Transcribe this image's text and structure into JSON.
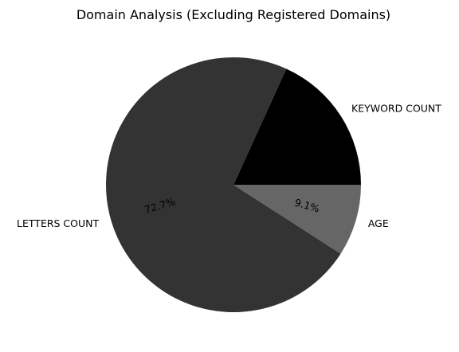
{
  "chart_data": {
    "type": "pie",
    "title": "Domain Analysis (Excluding Registered Domains)",
    "slices": [
      {
        "label": "KEYWORD COUNT",
        "value": 18.2,
        "pct_text": "",
        "color": "#000000"
      },
      {
        "label": "LETTERS COUNT",
        "value": 72.7,
        "pct_text": "72.7%",
        "color": "#333333"
      },
      {
        "label": "AGE",
        "value": 9.1,
        "pct_text": "9.1%",
        "color": "#666666"
      }
    ],
    "start_angle_deg": 0,
    "direction": "counterclockwise",
    "legend": "none"
  }
}
